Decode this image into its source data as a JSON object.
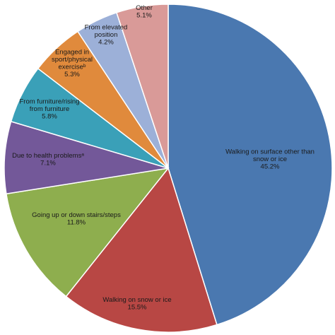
{
  "chart_data": {
    "type": "pie",
    "start_angle_deg": 0,
    "direction": "clockwise",
    "slices": [
      {
        "label_lines": [
          "Walking on surface other than",
          "snow or ice"
        ],
        "value_text": "45.2%",
        "value": 45.2,
        "color": "#4a78b0"
      },
      {
        "label_lines": [
          "Walking on snow or ice"
        ],
        "value_text": "15.5%",
        "value": 15.5,
        "color": "#b84744"
      },
      {
        "label_lines": [
          "Going up or down stairs/steps"
        ],
        "value_text": "11.8%",
        "value": 11.8,
        "color": "#8eae4e"
      },
      {
        "label_lines": [
          "Due to health problemsᵃ"
        ],
        "value_text": "7.1%",
        "value": 7.1,
        "color": "#735899"
      },
      {
        "label_lines": [
          "From furniture/rising",
          "from furniture"
        ],
        "value_text": "5.8%",
        "value": 5.8,
        "color": "#3aa0b8"
      },
      {
        "label_lines": [
          "Engaged in",
          "sport/physical",
          "exerciseᵇ"
        ],
        "value_text": "5.3%",
        "value": 5.3,
        "color": "#e08a3c"
      },
      {
        "label_lines": [
          "From elevated",
          "position"
        ],
        "value_text": "4.2%",
        "value": 4.2,
        "color": "#9cb0d8"
      },
      {
        "label_lines": [
          "Other"
        ],
        "value_text": "5.1%",
        "value": 5.1,
        "color": "#d99a98"
      }
    ]
  }
}
